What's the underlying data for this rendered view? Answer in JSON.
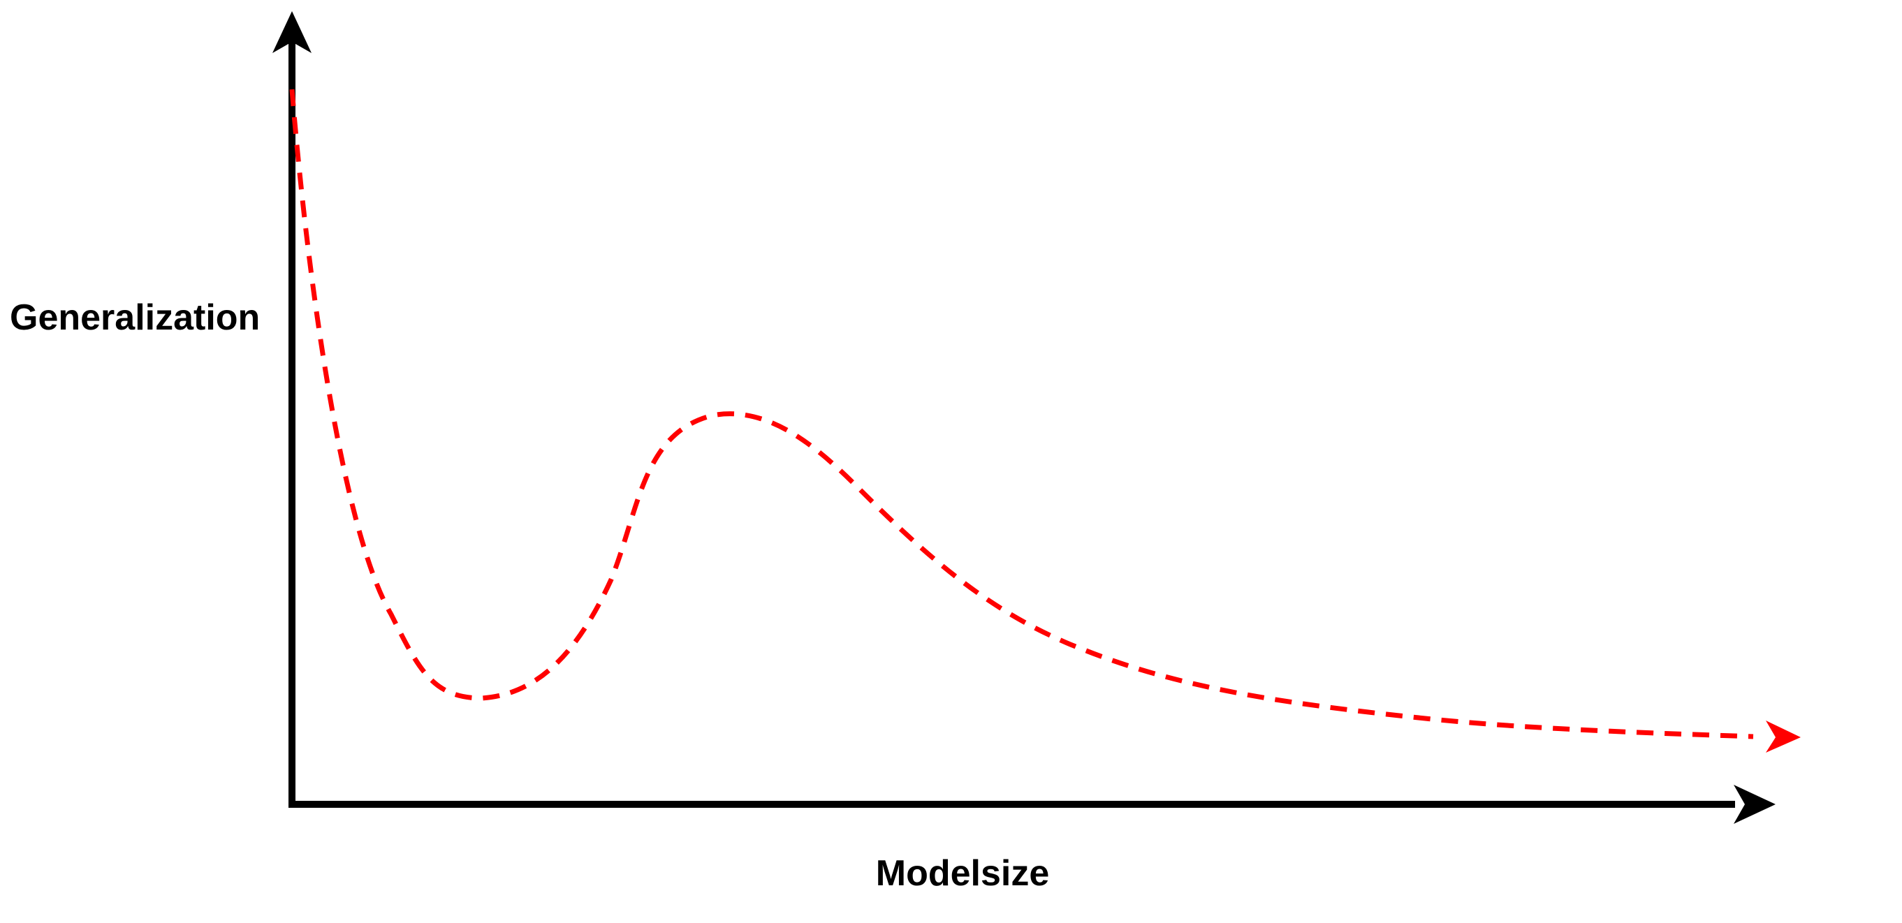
{
  "diagram": {
    "y_axis_label": "Generalization",
    "x_axis_label": "Modelsize",
    "axis_color": "#000000",
    "curve_color": "#ff0000",
    "curve_style": "dashed",
    "curve_end": "arrow"
  }
}
